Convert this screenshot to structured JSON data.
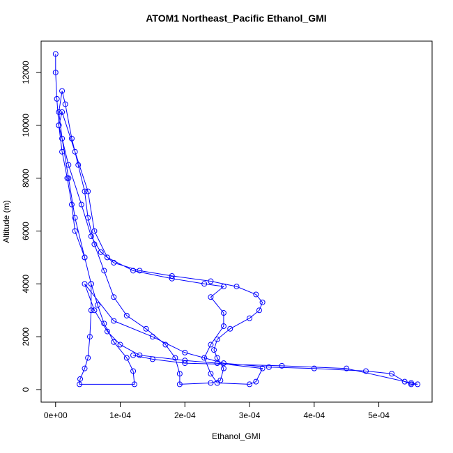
{
  "chart_data": {
    "type": "scatter",
    "title": "ATOM1 Northeast_Pacific Ethanol_GMI",
    "xlabel": "Ethanol_GMI",
    "ylabel": "Altitude (m)",
    "color": "#0000ff",
    "xlim": [
      -2.24e-05,
      0.0005824
    ],
    "ylim": [
      -475,
      13186
    ],
    "xticks": [
      {
        "value": 0,
        "label": "0e+00"
      },
      {
        "value": 0.0001,
        "label": "1e-04"
      },
      {
        "value": 0.0002,
        "label": "2e-04"
      },
      {
        "value": 0.0003,
        "label": "3e-04"
      },
      {
        "value": 0.0004,
        "label": "4e-04"
      },
      {
        "value": 0.0005,
        "label": "5e-04"
      }
    ],
    "yticks": [
      0,
      2000,
      4000,
      6000,
      8000,
      10000,
      12000
    ],
    "x": [
      0,
      0,
      2e-06,
      5e-06,
      1e-05,
      1.8e-05,
      2.5e-05,
      3e-05,
      4.5e-05,
      5.5e-05,
      5.5e-05,
      5.3e-05,
      5e-05,
      4.5e-05,
      3.8e-05,
      3.7e-05,
      0.000122,
      0.00012,
      0.00011,
      9e-05,
      7.5e-05,
      6.5e-05,
      5.5e-05,
      4.5e-05,
      3e-05,
      2e-05,
      1e-05,
      5e-06,
      1e-05,
      1.5e-05,
      2.5e-05,
      3.5e-05,
      4.5e-05,
      5e-05,
      6e-05,
      7.5e-05,
      9e-05,
      0.00011,
      0.00014,
      0.00017,
      0.000185,
      0.000192,
      0.000192,
      0.00024,
      0.000255,
      0.00026,
      0.00025,
      0.000245,
      0.00025,
      0.00027,
      0.0003,
      0.000315,
      0.00032,
      0.00031,
      0.00028,
      0.00024,
      0.00018,
      0.00013,
      9e-05,
      7e-05,
      5.5e-05,
      4e-05,
      2e-05,
      5e-06,
      1e-05,
      3e-05,
      5e-05,
      6e-05,
      8e-05,
      0.00012,
      0.00018,
      0.00023,
      0.00026,
      0.00024,
      0.00026,
      0.00026,
      0.00024,
      0.00023,
      0.00024,
      0.00025,
      0.0003,
      0.00031,
      0.00032,
      0.00025,
      0.0002,
      0.00013,
      0.0001,
      8e-05,
      6e-05,
      4.5e-05,
      9e-05,
      0.00015,
      0.0002,
      0.00026,
      0.00033,
      0.0004,
      0.00048,
      0.00052,
      0.00054,
      0.00055,
      0.00056,
      0.00055,
      0.00045,
      0.00035,
      0.0002,
      0.00015,
      0.00012
    ],
    "values": [
      12700,
      12000,
      11000,
      10000,
      9000,
      8000,
      7000,
      6000,
      5000,
      4000,
      3000,
      2000,
      1200,
      800,
      400,
      200,
      200,
      700,
      1200,
      1800,
      2500,
      3200,
      4000,
      5000,
      6500,
      8000,
      9500,
      10500,
      11300,
      10800,
      9500,
      8500,
      7500,
      6500,
      5500,
      4500,
      3500,
      2800,
      2300,
      1700,
      1200,
      600,
      200,
      250,
      350,
      800,
      1200,
      1500,
      1900,
      2300,
      2700,
      3000,
      3300,
      3600,
      3900,
      4100,
      4300,
      4500,
      4800,
      5200,
      5800,
      7000,
      8500,
      10000,
      10500,
      9000,
      7500,
      6000,
      5000,
      4500,
      4200,
      4000,
      3900,
      3500,
      2900,
      2400,
      1700,
      1200,
      600,
      250,
      200,
      300,
      800,
      1000,
      1100,
      1300,
      1700,
      2200,
      3000,
      4000,
      2600,
      2000,
      1400,
      1000,
      850,
      800,
      700,
      600,
      300,
      200,
      200,
      250,
      800,
      900,
      1000,
      1150,
      1300
    ]
  }
}
